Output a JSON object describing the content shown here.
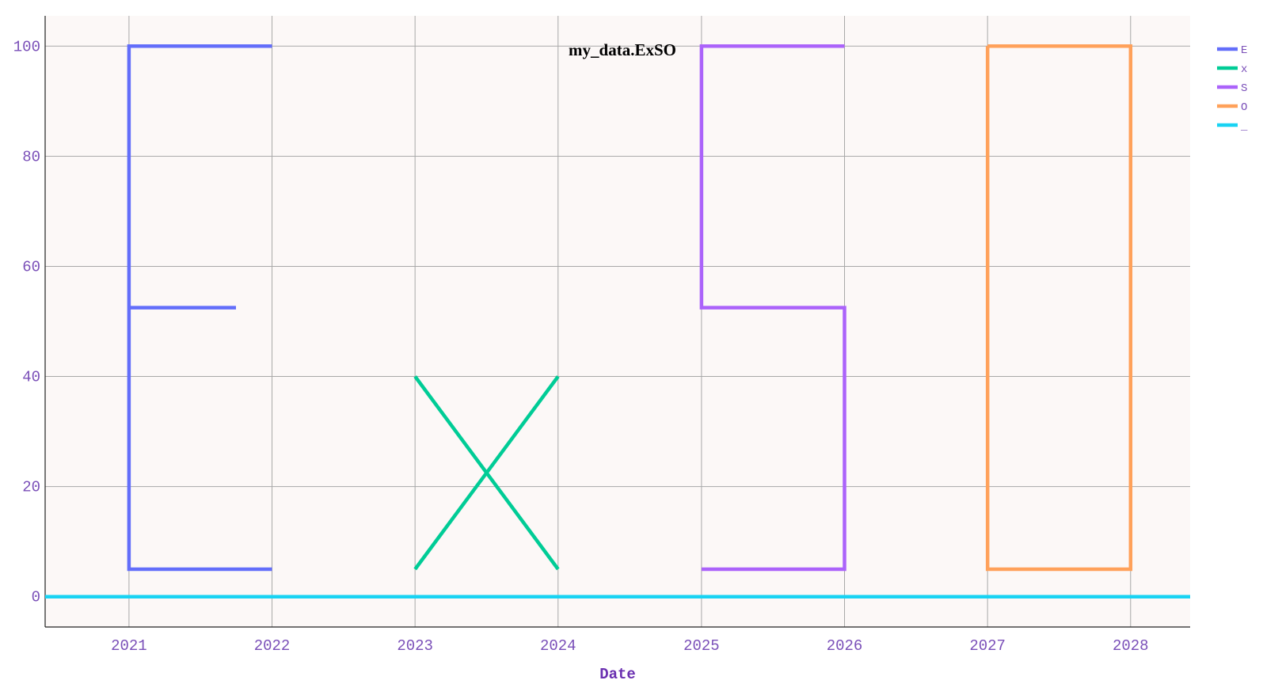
{
  "chart_data": {
    "type": "line",
    "title": "my_data.ExSO",
    "xlabel": "Date",
    "ylabel": "",
    "xlim": [
      "2020-06-01",
      "2028-06-01"
    ],
    "ylim": [
      -5.5,
      105.5
    ],
    "x_ticks": [
      "2021",
      "2022",
      "2023",
      "2024",
      "2025",
      "2026",
      "2027",
      "2028"
    ],
    "y_ticks": [
      "0",
      "20",
      "40",
      "60",
      "80",
      "100"
    ],
    "grid": true,
    "legend_position": "top-right",
    "background_color": "#fcf8f7",
    "series": [
      {
        "name": "E",
        "color": "#636efa",
        "segments": [
          [
            [
              "2022-01-01",
              100
            ],
            [
              "2021-01-01",
              100
            ],
            [
              "2021-01-01",
              5
            ],
            [
              "2022-01-01",
              5
            ]
          ],
          [
            [
              "2021-01-01",
              52.5
            ],
            [
              "2021-10-01",
              52.5
            ]
          ]
        ]
      },
      {
        "name": "x",
        "color": "#00cc96",
        "segments": [
          [
            [
              "2023-01-01",
              40
            ],
            [
              "2024-01-01",
              5
            ]
          ],
          [
            [
              "2023-01-01",
              5
            ],
            [
              "2024-01-01",
              40
            ]
          ]
        ]
      },
      {
        "name": "S",
        "color": "#ab63fa",
        "segments": [
          [
            [
              "2026-01-01",
              100
            ],
            [
              "2025-01-01",
              100
            ],
            [
              "2025-01-01",
              52.5
            ],
            [
              "2026-01-01",
              52.5
            ],
            [
              "2026-01-01",
              5
            ],
            [
              "2025-01-01",
              5
            ]
          ]
        ]
      },
      {
        "name": "O",
        "color": "#ffa15a",
        "segments": [
          [
            [
              "2027-01-01",
              100
            ],
            [
              "2028-01-01",
              100
            ],
            [
              "2028-01-01",
              5
            ],
            [
              "2027-01-01",
              5
            ],
            [
              "2027-01-01",
              100
            ]
          ]
        ]
      },
      {
        "name": "_",
        "color": "#19d3f3",
        "segments": [
          [
            [
              "2020-06-01",
              0
            ],
            [
              "2028-06-01",
              0
            ]
          ]
        ]
      }
    ]
  }
}
